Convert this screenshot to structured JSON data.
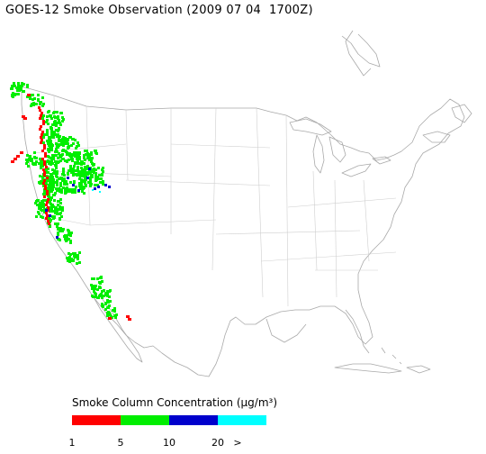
{
  "map": {
    "title": "GOES-12 Smoke Observation (2009 07 04  1700Z)",
    "region": "Continental United States",
    "smoke_colors": {
      "low": "#ff0000",
      "medium": "#00ee00",
      "high": "#0000cc",
      "highest": "#00ffff"
    }
  },
  "legend": {
    "title": "Smoke Column Concentration (µg/m³)",
    "bins": [
      {
        "color": "#ff0000",
        "range": "1-5"
      },
      {
        "color": "#00ee00",
        "range": "5-10"
      },
      {
        "color": "#0000cc",
        "range": "10-20"
      },
      {
        "color": "#00ffff",
        "range": ">20"
      }
    ],
    "ticks": [
      "1",
      "5",
      "10",
      "20",
      ">"
    ]
  }
}
